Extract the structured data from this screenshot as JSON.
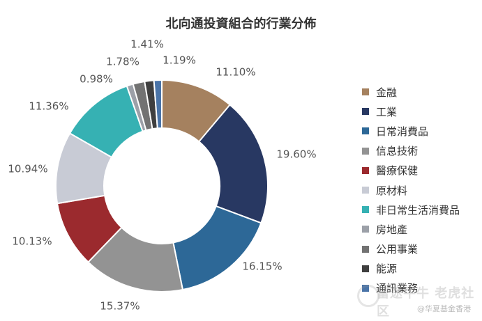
{
  "chart_data": {
    "type": "pie",
    "title": "北向通投資組合的行業分佈",
    "legend_position": "right",
    "slices": [
      {
        "label": "金融",
        "value": 11.1,
        "display": "11.10%",
        "color": "#A5815F"
      },
      {
        "label": "工業",
        "value": 19.6,
        "display": "19.60%",
        "color": "#283862"
      },
      {
        "label": "日常消費品",
        "value": 16.15,
        "display": "16.15%",
        "color": "#2D6897"
      },
      {
        "label": "信息技術",
        "value": 15.37,
        "display": "15.37%",
        "color": "#939393"
      },
      {
        "label": "醫療保健",
        "value": 10.13,
        "display": "10.13%",
        "color": "#9B2A2E"
      },
      {
        "label": "原材料",
        "value": 10.94,
        "display": "10.94%",
        "color": "#C8CBD5"
      },
      {
        "label": "非日常生活消費品",
        "value": 11.36,
        "display": "11.36%",
        "color": "#36B1B3"
      },
      {
        "label": "房地產",
        "value": 0.98,
        "display": "0.98%",
        "color": "#9CA0A8"
      },
      {
        "label": "公用事業",
        "value": 1.78,
        "display": "1.78%",
        "color": "#727272"
      },
      {
        "label": "能源",
        "value": 1.41,
        "display": "1.41%",
        "color": "#3F3F3F"
      },
      {
        "label": "通訊業務",
        "value": 1.19,
        "display": "1.19%",
        "color": "#4A74A8"
      }
    ]
  },
  "watermark": {
    "main": "富途牛牛 老虎社区",
    "sub": "@华夏基金香港"
  }
}
